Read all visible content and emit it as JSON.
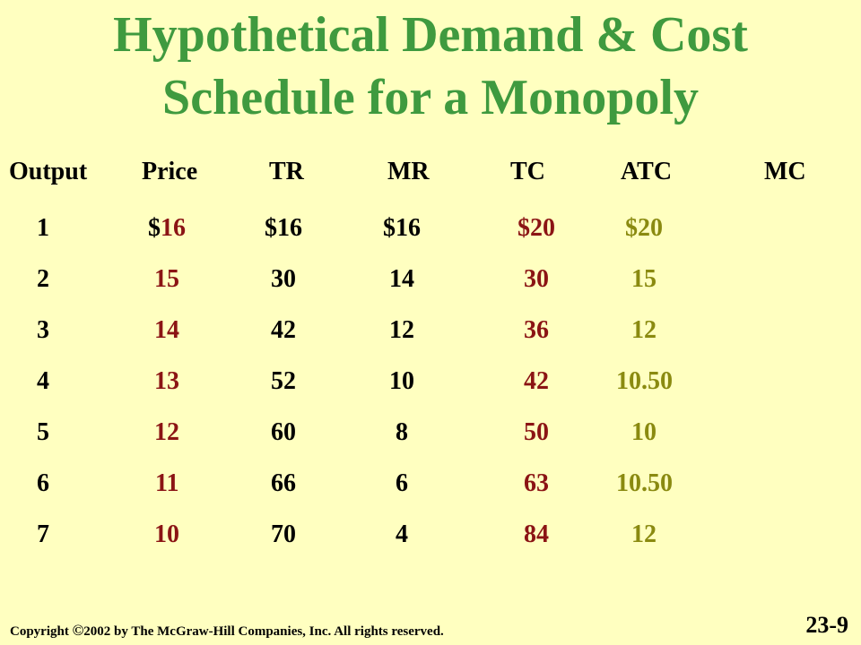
{
  "title": {
    "line1": "Hypothetical Demand & Cost",
    "line2": "Schedule for a Monopoly"
  },
  "table": {
    "headers": {
      "output": "Output",
      "price": "Price",
      "tr": "TR",
      "mr": "MR",
      "tc": "TC",
      "atc": "ATC",
      "mc": "MC"
    },
    "rows": [
      {
        "output": "1",
        "price_prefix": "$",
        "price": "16",
        "tr": "$16",
        "mr": "$16",
        "tc": "$20",
        "atc": "$20"
      },
      {
        "output": "2",
        "price_prefix": "",
        "price": "15",
        "tr": "30",
        "mr": "14",
        "tc": "30",
        "atc": "15"
      },
      {
        "output": "3",
        "price_prefix": "",
        "price": "14",
        "tr": "42",
        "mr": "12",
        "tc": "36",
        "atc": "12"
      },
      {
        "output": "4",
        "price_prefix": "",
        "price": "13",
        "tr": "52",
        "mr": "10",
        "tc": "42",
        "atc": "10.50"
      },
      {
        "output": "5",
        "price_prefix": "",
        "price": "12",
        "tr": "60",
        "mr": "8",
        "tc": "50",
        "atc": "10"
      },
      {
        "output": "6",
        "price_prefix": "",
        "price": "11",
        "tr": "66",
        "mr": "6",
        "tc": "63",
        "atc": "10.50"
      },
      {
        "output": "7",
        "price_prefix": "",
        "price": "10",
        "tr": "70",
        "mr": "4",
        "tc": "84",
        "atc": "12"
      }
    ]
  },
  "footer": {
    "copyright_prefix": "Copyright ",
    "copyright_symbol": "©",
    "copyright_text": "2002 by The McGraw-Hill Companies, Inc.  All rights reserved.",
    "slide_number": "23-9"
  },
  "colors": {
    "background": "#ffffc0",
    "title": "#3f9a3f",
    "price_tc": "#8b1414",
    "atc": "#8a8a10"
  }
}
